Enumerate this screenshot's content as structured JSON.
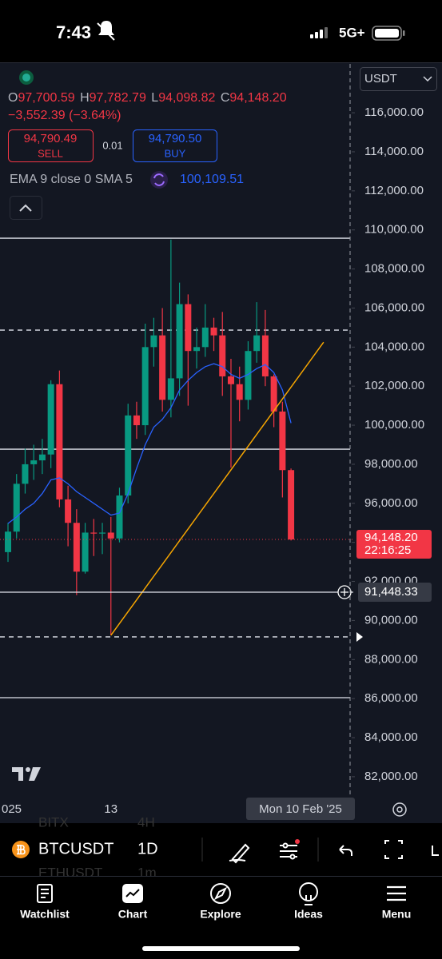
{
  "status_bar": {
    "time": "7:43",
    "network": "5G+"
  },
  "toolbar": {
    "currency": "USDT"
  },
  "legend": {
    "o_label": "O",
    "open": "97,700.59",
    "h_label": "H",
    "high": "97,782.79",
    "l_label": "L",
    "low": "94,098.82",
    "c_label": "C",
    "close": "94,148.20",
    "change": "−3,552.39 (−3.64%)",
    "sell_price": "94,790.49",
    "sell": "SELL",
    "spread": "0.01",
    "buy_price": "94,790.50",
    "buy": "BUY",
    "indicator": "EMA 9 close 0 SMA 5",
    "indicator_value": "100,109.51"
  },
  "chart_data": {
    "type": "candlestick",
    "categories": [
      "025",
      null,
      null,
      null,
      null,
      null,
      null,
      null,
      null,
      null,
      null,
      null,
      "13",
      null,
      null,
      null,
      null,
      null,
      null,
      null,
      null,
      null,
      null,
      null,
      null,
      null,
      null,
      null,
      null,
      null,
      null,
      null,
      null,
      null
    ],
    "open": [
      93500,
      94550,
      97000,
      98000,
      98200,
      98500,
      102100,
      96200,
      95000,
      92500,
      94500,
      94450,
      94500,
      94200,
      96400,
      100500,
      100000,
      104000,
      104600,
      101300,
      102400,
      106200,
      103800,
      104000,
      105000,
      104600,
      102500,
      102100,
      101300,
      103800,
      104600,
      102500,
      100700,
      97700.59
    ],
    "high": [
      95000,
      97500,
      98800,
      99000,
      99300,
      102300,
      102800,
      96900,
      95700,
      95000,
      95200,
      95000,
      95300,
      96800,
      101100,
      101200,
      105200,
      105500,
      106000,
      109500,
      107300,
      106700,
      105000,
      106200,
      105500,
      105800,
      103400,
      103000,
      104300,
      106300,
      105900,
      102600,
      101200,
      97782.79
    ],
    "low": [
      93000,
      94200,
      96500,
      97200,
      97500,
      97800,
      95800,
      93800,
      91300,
      92400,
      93300,
      93400,
      89240,
      94000,
      96000,
      99300,
      99500,
      103000,
      100700,
      100400,
      101500,
      101000,
      102900,
      103500,
      103800,
      101500,
      97830,
      100200,
      100800,
      103200,
      102000,
      99900,
      96300,
      94098.82
    ],
    "close": [
      94550,
      97000,
      98000,
      98200,
      98500,
      102100,
      96200,
      95000,
      92500,
      94500,
      94450,
      94500,
      94200,
      96400,
      100500,
      100000,
      104000,
      104600,
      101300,
      102400,
      106200,
      103800,
      104000,
      105000,
      104600,
      102500,
      102100,
      101300,
      103800,
      104600,
      102500,
      100700,
      97700.59,
      94148.2
    ],
    "up_color": "#089981",
    "down_color": "#f23645",
    "ema": {
      "color": "#2962ff",
      "values": [
        94970,
        95300,
        95700,
        96000,
        96500,
        97200,
        97300,
        97000,
        96600,
        96300,
        96000,
        95700,
        95400,
        95500,
        96500,
        97800,
        99000,
        99900,
        100300,
        100900,
        101800,
        102300,
        102700,
        103000,
        103150,
        103000,
        102600,
        102400,
        102600,
        102900,
        103100,
        102700,
        101800,
        100109.51
      ]
    },
    "ylim": [
      80850,
      118500
    ],
    "yticks": [
      {
        "value": 82000,
        "label": "82,000.00"
      },
      {
        "value": 84000,
        "label": "84,000.00"
      },
      {
        "value": 86000,
        "label": "86,000.00"
      },
      {
        "value": 88000,
        "label": "88,000.00"
      },
      {
        "value": 90000,
        "label": "90,000.00"
      },
      {
        "value": 92000,
        "label": "92,000.00"
      },
      {
        "value": 94000,
        "label": "94,000.00"
      },
      {
        "value": 96000,
        "label": "96,000.00"
      },
      {
        "value": 98000,
        "label": "98,000.00"
      },
      {
        "value": 100000,
        "label": "100,000.00"
      },
      {
        "value": 102000,
        "label": "102,000.00"
      },
      {
        "value": 104000,
        "label": "104,000.00"
      },
      {
        "value": 106000,
        "label": "106,000.00"
      },
      {
        "value": 108000,
        "label": "108,000.00"
      },
      {
        "value": 110000,
        "label": "110,000.00"
      },
      {
        "value": 112000,
        "label": "112,000.00"
      },
      {
        "value": 114000,
        "label": "114,000.00"
      },
      {
        "value": 116000,
        "label": "116,000.00"
      }
    ],
    "hlines": [
      {
        "value": 109576,
        "style": "solid"
      },
      {
        "value": 104870,
        "style": "dashed"
      },
      {
        "value": 98773,
        "style": "solid"
      },
      {
        "value": 89160,
        "style": "dashed"
      },
      {
        "value": 86046,
        "style": "solid"
      }
    ],
    "trendline": {
      "color": "#f7a600",
      "from": {
        "index": 12,
        "value": 89240
      },
      "to": {
        "index": 36.8,
        "value": 104250
      }
    },
    "last_price": {
      "value": 94148.2,
      "label": "94,148.20",
      "countdown": "22:16:25"
    },
    "crosshair": {
      "value": 91448.33,
      "label": "91,448.33",
      "date": "Mon 10 Feb '25"
    }
  },
  "symbol_bar": {
    "symbol": "BTCUSDT",
    "interval": "1D",
    "ghost_symbol_1": "BITX",
    "ghost_interval_1": "4H",
    "ghost_symbol_2": "ETHUSDT",
    "ghost_interval_2": "1m"
  },
  "tab_bar": {
    "tabs": [
      "Watchlist",
      "Chart",
      "Explore",
      "Ideas",
      "Menu"
    ]
  }
}
